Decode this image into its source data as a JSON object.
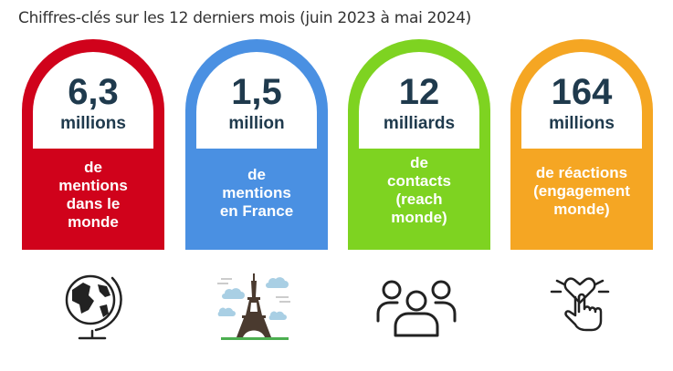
{
  "title": "Chiffres-clés sur les 12 derniers mois (juin 2023 à mai 2024)",
  "cards": [
    {
      "number": "6,3",
      "unit": "millions",
      "lines": [
        "de",
        "mentions",
        "dans le",
        "monde"
      ],
      "color": "#d0021b",
      "icon": "globe-icon"
    },
    {
      "number": "1,5",
      "unit": "million",
      "lines": [
        "de",
        "mentions",
        "en France"
      ],
      "color": "#4a90e2",
      "icon": "eiffel-tower-icon"
    },
    {
      "number": "12",
      "unit": "milliards",
      "lines": [
        "de",
        "contacts",
        "(reach",
        "monde)"
      ],
      "color": "#7ed321",
      "icon": "people-group-icon"
    },
    {
      "number": "164",
      "unit": "millions",
      "lines": [
        "de réactions",
        "(engagement",
        "monde)"
      ],
      "color": "#f5a623",
      "icon": "heart-tap-icon"
    }
  ]
}
